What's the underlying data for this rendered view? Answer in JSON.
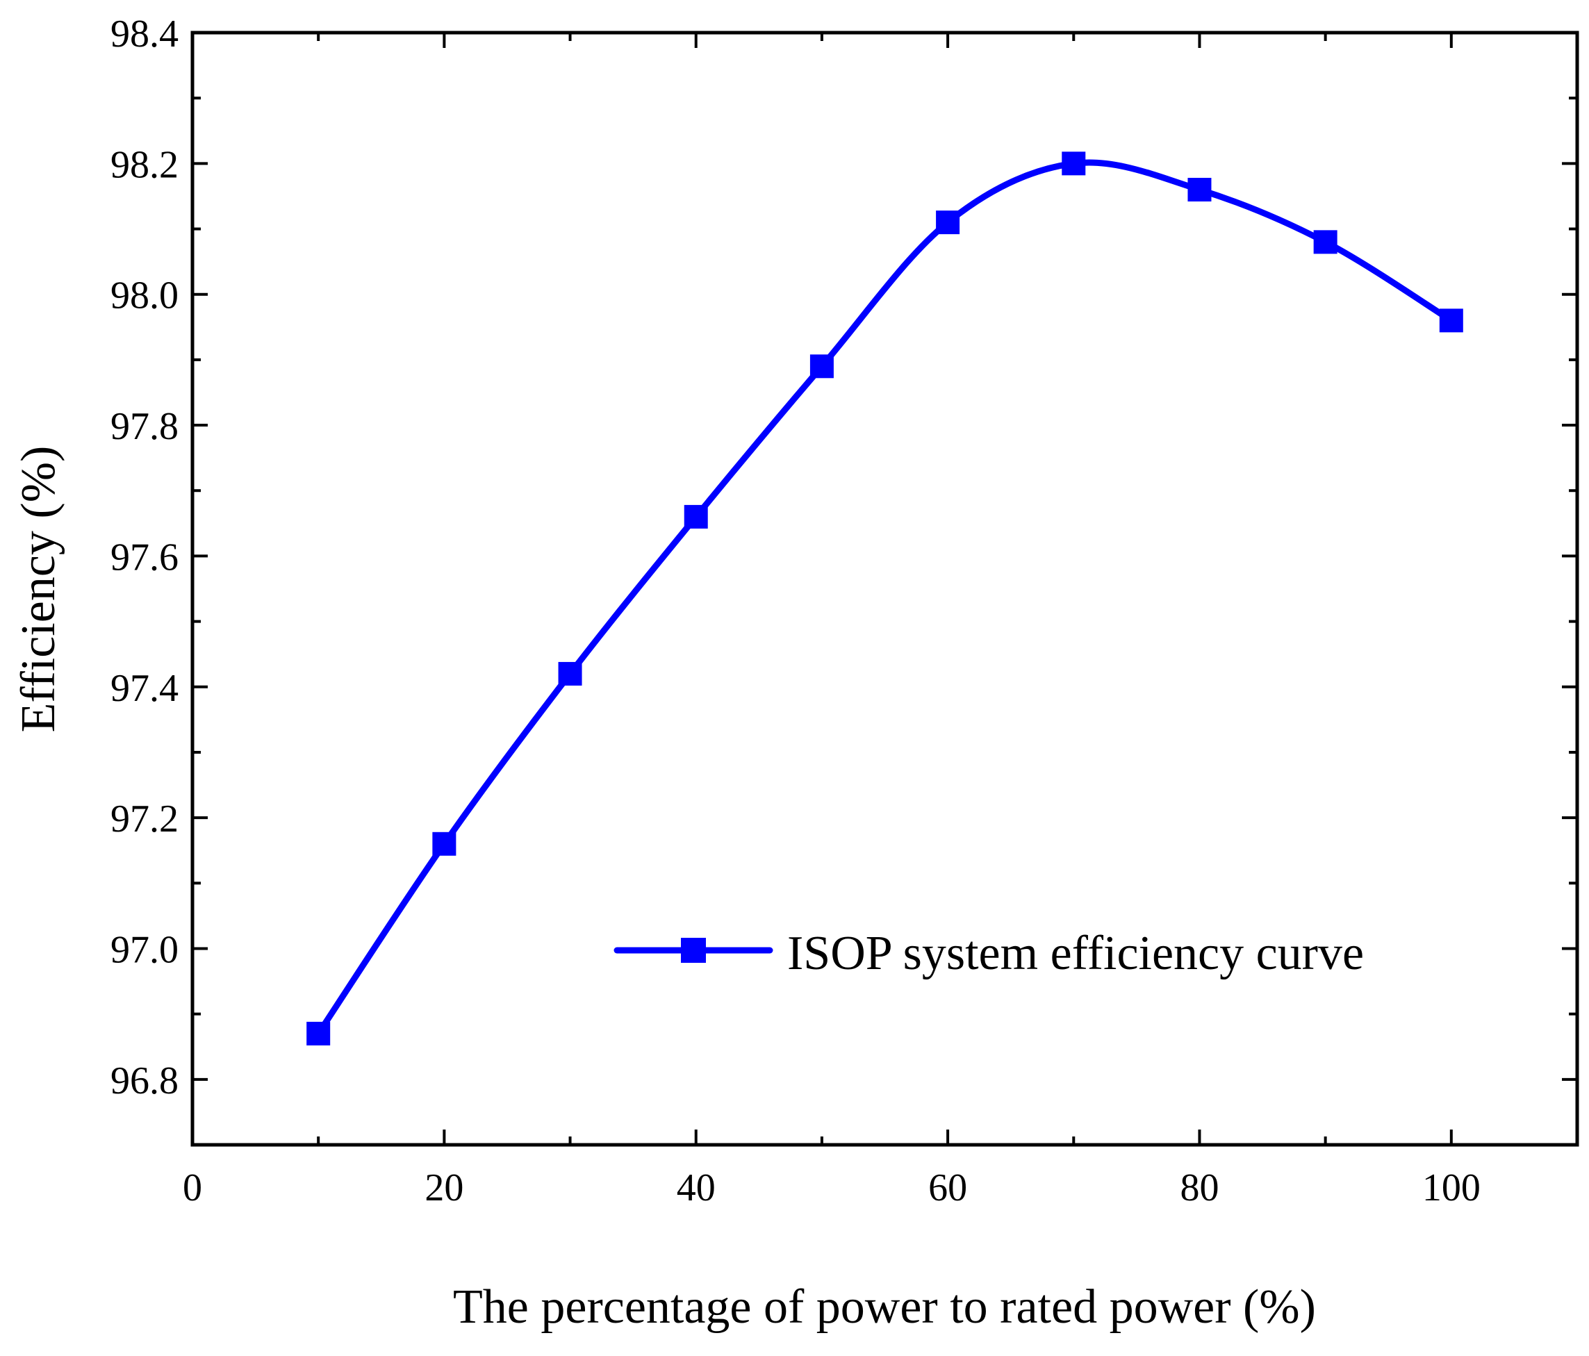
{
  "chart_data": {
    "type": "line",
    "title": "",
    "xlabel": "The percentage of power to rated power (%)",
    "ylabel": "Efficiency (%)",
    "xlim": [
      0,
      110
    ],
    "ylim": [
      96.7,
      98.4
    ],
    "x_ticks": [
      0,
      20,
      40,
      60,
      80,
      100
    ],
    "x_tick_labels": [
      "0",
      "20",
      "40",
      "60",
      "80",
      "100"
    ],
    "y_ticks": [
      96.8,
      97.0,
      97.2,
      97.4,
      97.6,
      97.8,
      98.0,
      98.2,
      98.4
    ],
    "y_tick_labels": [
      "96.8",
      "97.0",
      "97.2",
      "97.4",
      "97.6",
      "97.8",
      "98.0",
      "98.2",
      "98.4"
    ],
    "grid": false,
    "legend_position": "center-right",
    "series": [
      {
        "name": "ISOP system efficiency curve",
        "color": "#0000ff",
        "marker": "square",
        "x": [
          10,
          20,
          30,
          40,
          50,
          60,
          70,
          80,
          90,
          100
        ],
        "y": [
          96.87,
          97.16,
          97.42,
          97.66,
          97.89,
          98.11,
          98.2,
          98.16,
          98.08,
          97.96
        ]
      }
    ]
  }
}
